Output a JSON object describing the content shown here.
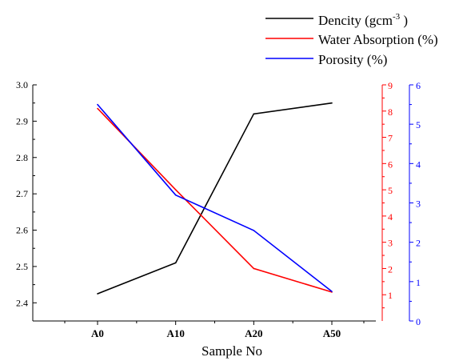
{
  "chart_data": {
    "type": "line",
    "categories": [
      "A0",
      "A10",
      "A20",
      "A50"
    ],
    "xlabel": "Sample No",
    "legend_position": "top-right",
    "colors": {
      "density": "#000000",
      "water_absorption": "#ff0000",
      "porosity": "#0000ff"
    },
    "axes": {
      "left": {
        "ylim": [
          2.35,
          3.0
        ],
        "ticks": [
          "2.4",
          "2.5",
          "2.6",
          "2.7",
          "2.8",
          "2.9",
          "3.0"
        ]
      },
      "right1": {
        "ylim": [
          0,
          9
        ],
        "ticks": [
          "1",
          "2",
          "3",
          "4",
          "5",
          "6",
          "7",
          "8",
          "9"
        ]
      },
      "right2": {
        "ylim": [
          0,
          6
        ],
        "ticks": [
          "0",
          "1",
          "2",
          "3",
          "4",
          "5",
          "6"
        ]
      }
    },
    "series": [
      {
        "key": "density",
        "name": "Dencity (gcm",
        "name_sup": "-3",
        "name_tail": " )",
        "axis": "left",
        "color": "#000000",
        "values": [
          2.425,
          2.51,
          2.92,
          2.95
        ]
      },
      {
        "key": "water_absorption",
        "name": "Water Absorption (%)",
        "axis": "right1",
        "color": "#ff0000",
        "values": [
          8.1,
          5.0,
          2.0,
          1.1
        ]
      },
      {
        "key": "porosity",
        "name": "Porosity (%)",
        "axis": "right2",
        "color": "#0000ff",
        "values": [
          5.5,
          3.2,
          2.3,
          0.75
        ]
      }
    ]
  }
}
